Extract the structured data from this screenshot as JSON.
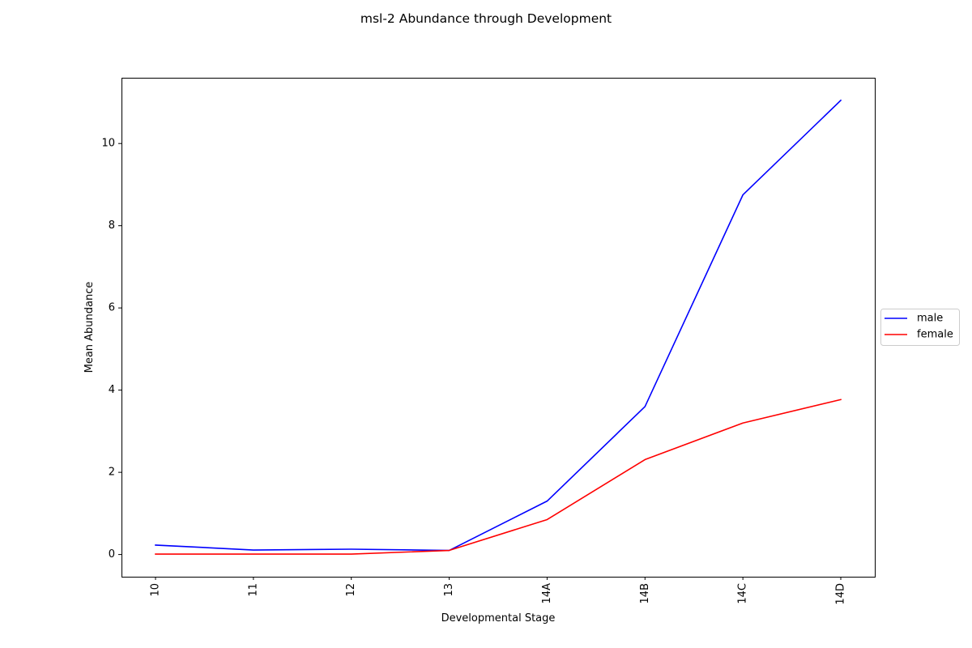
{
  "chart_data": {
    "type": "line",
    "title": "msl-2 Abundance through Development",
    "xlabel": "Developmental Stage",
    "ylabel": "Mean Abundance",
    "categories": [
      "10",
      "11",
      "12",
      "13",
      "14A",
      "14B",
      "14C",
      "14D"
    ],
    "series": [
      {
        "name": "male",
        "color": "#0000ff",
        "values": [
          0.23,
          0.11,
          0.13,
          0.1,
          1.3,
          3.6,
          8.75,
          11.05
        ]
      },
      {
        "name": "female",
        "color": "#ff0000",
        "values": [
          0.01,
          0.01,
          0.01,
          0.1,
          0.85,
          2.31,
          3.2,
          3.77
        ]
      }
    ],
    "ylim": [
      -0.54,
      11.6
    ],
    "yticks": [
      0,
      2,
      4,
      6,
      8,
      10
    ],
    "grid": false,
    "legend_position": "center-right outside"
  }
}
